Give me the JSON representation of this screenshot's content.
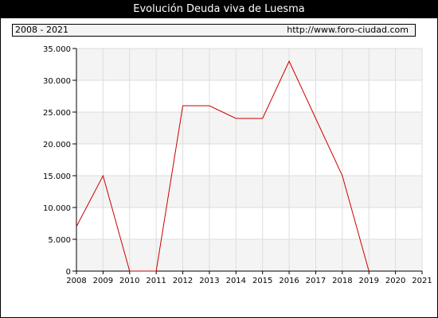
{
  "header": {
    "title": "Evolución Deuda viva de Luesma",
    "period": "2008 - 2021",
    "url": "http://www.foro-ciudad.com"
  },
  "chart_data": {
    "type": "line",
    "x": [
      2008,
      2009,
      2010,
      2011,
      2012,
      2013,
      2014,
      2015,
      2016,
      2017,
      2018,
      2019,
      2020,
      2021
    ],
    "series": [
      {
        "values": [
          7000,
          15000,
          0,
          0,
          26000,
          26000,
          24000,
          24000,
          33000,
          24000,
          15000,
          0,
          null,
          null
        ],
        "color": "#cc0000"
      }
    ],
    "xlim": [
      2008,
      2021
    ],
    "ylim": [
      0,
      35000
    ],
    "ytick_labels": [
      "0",
      "5.000",
      "10.000",
      "15.000",
      "20.000",
      "25.000",
      "30.000",
      "35.000"
    ],
    "xtick_labels": [
      "2008",
      "2009",
      "2010",
      "2011",
      "2012",
      "2013",
      "2014",
      "2015",
      "2016",
      "2017",
      "2018",
      "2019",
      "2020",
      "2021"
    ],
    "grid": true,
    "band_colors": [
      "#f4f4f4",
      "#ffffff"
    ]
  }
}
